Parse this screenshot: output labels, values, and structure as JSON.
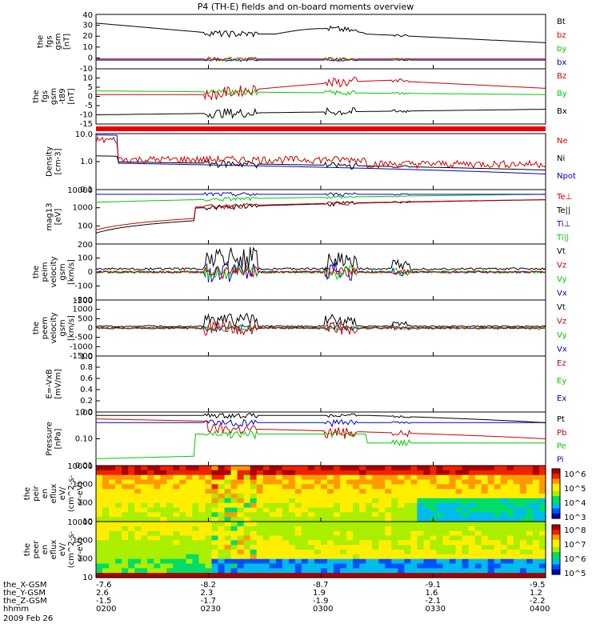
{
  "title": "P4 (TH-E) fields and on-board moments overview",
  "colors": {
    "black": "#000000",
    "red": "#cc0000",
    "green": "#00cc00",
    "blue": "#0000cc"
  },
  "chart_data": [
    {
      "type": "line",
      "ylabel": [
        "the",
        "fgs",
        "gsm",
        "[nT]"
      ],
      "ylim": [
        -10,
        40
      ],
      "ticks": [
        "40",
        "30",
        "20",
        "10",
        "0",
        "-10"
      ],
      "legend": [
        {
          "label": "Bt",
          "color": "black"
        },
        {
          "label": "bz",
          "color": "red"
        },
        {
          "label": "by",
          "color": "green"
        },
        {
          "label": "bx",
          "color": "blue"
        }
      ]
    },
    {
      "type": "line",
      "ylabel": [
        "the",
        "fgs",
        "gsm",
        "-t89",
        "[nT]"
      ],
      "ylim": [
        -15,
        15
      ],
      "ticks": [
        "10",
        "5",
        "0",
        "-5",
        "-10",
        "-15"
      ],
      "legend": [
        {
          "label": "Bz",
          "color": "red"
        },
        {
          "label": "By",
          "color": "green"
        },
        {
          "label": "Bx",
          "color": "black"
        }
      ]
    },
    {
      "type": "line",
      "ylabel": [
        "Density",
        "[cm-3]"
      ],
      "ylim": [
        0.1,
        10
      ],
      "scale": "log",
      "ticks": [
        "10.0",
        "1.0",
        "0.1"
      ],
      "legend": [
        {
          "label": "Ne",
          "color": "red"
        },
        {
          "label": "Ni",
          "color": "black"
        },
        {
          "label": "Npot",
          "color": "blue"
        }
      ]
    },
    {
      "type": "line",
      "ylabel": [
        "mag13",
        "[eV]"
      ],
      "ylim": [
        10,
        10000
      ],
      "scale": "log",
      "ticks": [
        "10000",
        "1000",
        "100"
      ],
      "legend": [
        {
          "label": "Te⊥",
          "color": "red"
        },
        {
          "label": "Te||",
          "color": "black"
        },
        {
          "label": "Ti⊥",
          "color": "blue"
        },
        {
          "label": "Ti||",
          "color": "green"
        }
      ]
    },
    {
      "type": "line",
      "ylabel": [
        "the",
        "peim",
        "velocity",
        "gsm",
        "[km/s]"
      ],
      "ylim": [
        -200,
        200
      ],
      "ticks": [
        "200",
        "100",
        "0",
        "-100",
        "-200"
      ],
      "legend": [
        {
          "label": "Vt",
          "color": "black"
        },
        {
          "label": "Vz",
          "color": "red"
        },
        {
          "label": "Vy",
          "color": "green"
        },
        {
          "label": "Vx",
          "color": "blue"
        }
      ]
    },
    {
      "type": "line",
      "ylabel": [
        "the",
        "peem",
        "velocity",
        "gsm",
        "[km/s]"
      ],
      "ylim": [
        -1500,
        1500
      ],
      "ticks": [
        "1500",
        "1000",
        "500",
        "0",
        "-500",
        "-1000",
        "-1500"
      ],
      "legend": [
        {
          "label": "Vt",
          "color": "black"
        },
        {
          "label": "Vz",
          "color": "red"
        },
        {
          "label": "Vy",
          "color": "green"
        },
        {
          "label": "Vx",
          "color": "blue"
        }
      ]
    },
    {
      "type": "line",
      "ylabel": [
        "E=-VxB",
        "[mV/m]"
      ],
      "ylim": [
        0,
        1
      ],
      "ticks": [
        "1.0",
        "0.8",
        "0.6",
        "0.4",
        "0.2",
        "0.0"
      ],
      "legend": [
        {
          "label": "Ez",
          "color": "red"
        },
        {
          "label": "Ey",
          "color": "green"
        },
        {
          "label": "Ex",
          "color": "blue"
        }
      ]
    },
    {
      "type": "line",
      "ylabel": [
        "Pressure",
        "[nPa]"
      ],
      "ylim": [
        0.01,
        1
      ],
      "scale": "log",
      "ticks": [
        "1.00",
        "0.10",
        "0.01"
      ],
      "legend": [
        {
          "label": "Pt",
          "color": "black"
        },
        {
          "label": "Pb",
          "color": "red"
        },
        {
          "label": "Pe",
          "color": "green"
        },
        {
          "label": "Pi",
          "color": "blue"
        }
      ]
    },
    {
      "type": "heatmap",
      "ylabel": [
        "the",
        "peir",
        "en",
        "eflux",
        "eV/",
        "(cm^2-s-",
        "sr-eV)"
      ],
      "ylim": [
        10,
        10000
      ],
      "scale": "log",
      "ticks": [
        "10000",
        "1000",
        "100",
        "10"
      ],
      "colorbar_ticks": [
        "10^6",
        "10^5",
        "10^4",
        "10^3"
      ]
    },
    {
      "type": "heatmap",
      "ylabel": [
        "the",
        "peer",
        "en",
        "eflux",
        "eV/",
        "(cm^2-s-",
        "sr-eV)"
      ],
      "ylim": [
        10,
        10000
      ],
      "scale": "log",
      "ticks": [
        "10000",
        "1000",
        "100",
        "10"
      ],
      "colorbar_ticks": [
        "10^8",
        "10^7",
        "10^6",
        "10^5"
      ]
    }
  ],
  "xaxis": {
    "ticks": [
      "0200",
      "0230",
      "0300",
      "0330",
      "0400"
    ],
    "rows": [
      {
        "label": "the_X-GSM",
        "values": [
          "-7.6",
          "-8.2",
          "-8.7",
          "-9.1",
          "-9.5"
        ]
      },
      {
        "label": "the_Y-GSM",
        "values": [
          "2.6",
          "2.3",
          "1.9",
          "1.6",
          "1.2"
        ]
      },
      {
        "label": "the_Z-GSM",
        "values": [
          "-1.5",
          "-1.7",
          "-1.9",
          "-2.1",
          "-2.2"
        ]
      },
      {
        "label": "hhmm",
        "values": [
          "0200",
          "0230",
          "0300",
          "0330",
          "0400"
        ]
      }
    ],
    "date": "2009 Feb 26"
  }
}
